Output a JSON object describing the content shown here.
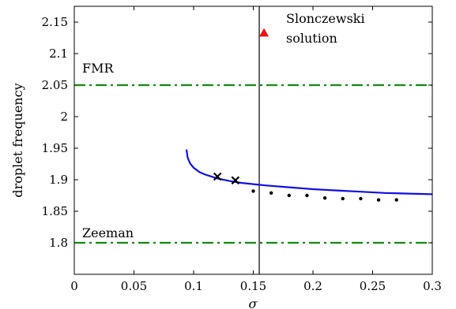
{
  "chart_data": {
    "type": "line",
    "xlabel": "σ",
    "ylabel": "droplet frequency",
    "xlim": [
      0,
      0.3
    ],
    "ylim": [
      1.75,
      2.175
    ],
    "xticks": [
      0,
      0.05,
      0.1,
      0.15,
      0.2,
      0.25,
      0.3
    ],
    "xtick_labels": [
      "0",
      "0.05",
      "0.1",
      "0.15",
      "0.2",
      "0.25",
      "0.3"
    ],
    "yticks": [
      1.8,
      1.85,
      1.9,
      1.95,
      2.0,
      2.05,
      2.1,
      2.15
    ],
    "ytick_labels": [
      "1.8",
      "1.85",
      "1.9",
      "1.95",
      "2",
      "2.05",
      "2.1",
      "2.15"
    ],
    "grid": false,
    "series": [
      {
        "style": "solid",
        "color": "#1010e0",
        "x": [
          0.094,
          0.095,
          0.097,
          0.1,
          0.105,
          0.11,
          0.12,
          0.13,
          0.14,
          0.15,
          0.16,
          0.18,
          0.2,
          0.22,
          0.24,
          0.26,
          0.28,
          0.3
        ],
        "y": [
          1.948,
          1.935,
          1.926,
          1.919,
          1.912,
          1.908,
          1.902,
          1.898,
          1.895,
          1.893,
          1.891,
          1.888,
          1.885,
          1.883,
          1.881,
          1.879,
          1.878,
          1.877
        ]
      },
      {
        "style": "x-markers",
        "color": "#000000",
        "x": [
          0.12,
          0.135
        ],
        "y": [
          1.905,
          1.899
        ]
      },
      {
        "style": "dots",
        "color": "#000000",
        "x": [
          0.15,
          0.165,
          0.18,
          0.195,
          0.21,
          0.225,
          0.24,
          0.255,
          0.27
        ],
        "y": [
          1.882,
          1.879,
          1.875,
          1.875,
          1.871,
          1.87,
          1.87,
          1.868,
          1.868
        ]
      }
    ],
    "hlines": [
      {
        "y": 2.05,
        "label": "FMR",
        "style": "dashdot",
        "color": "#138a13"
      },
      {
        "y": 1.8,
        "label": "Zeeman",
        "style": "dashdot",
        "color": "#138a13"
      }
    ],
    "vline": {
      "x": 0.155,
      "color": "#000000"
    },
    "marker": {
      "x": 0.159,
      "y": 2.133,
      "shape": "triangle",
      "color": "#ee1111",
      "label_line1": "Slonczewski",
      "label_line2": "solution"
    }
  }
}
